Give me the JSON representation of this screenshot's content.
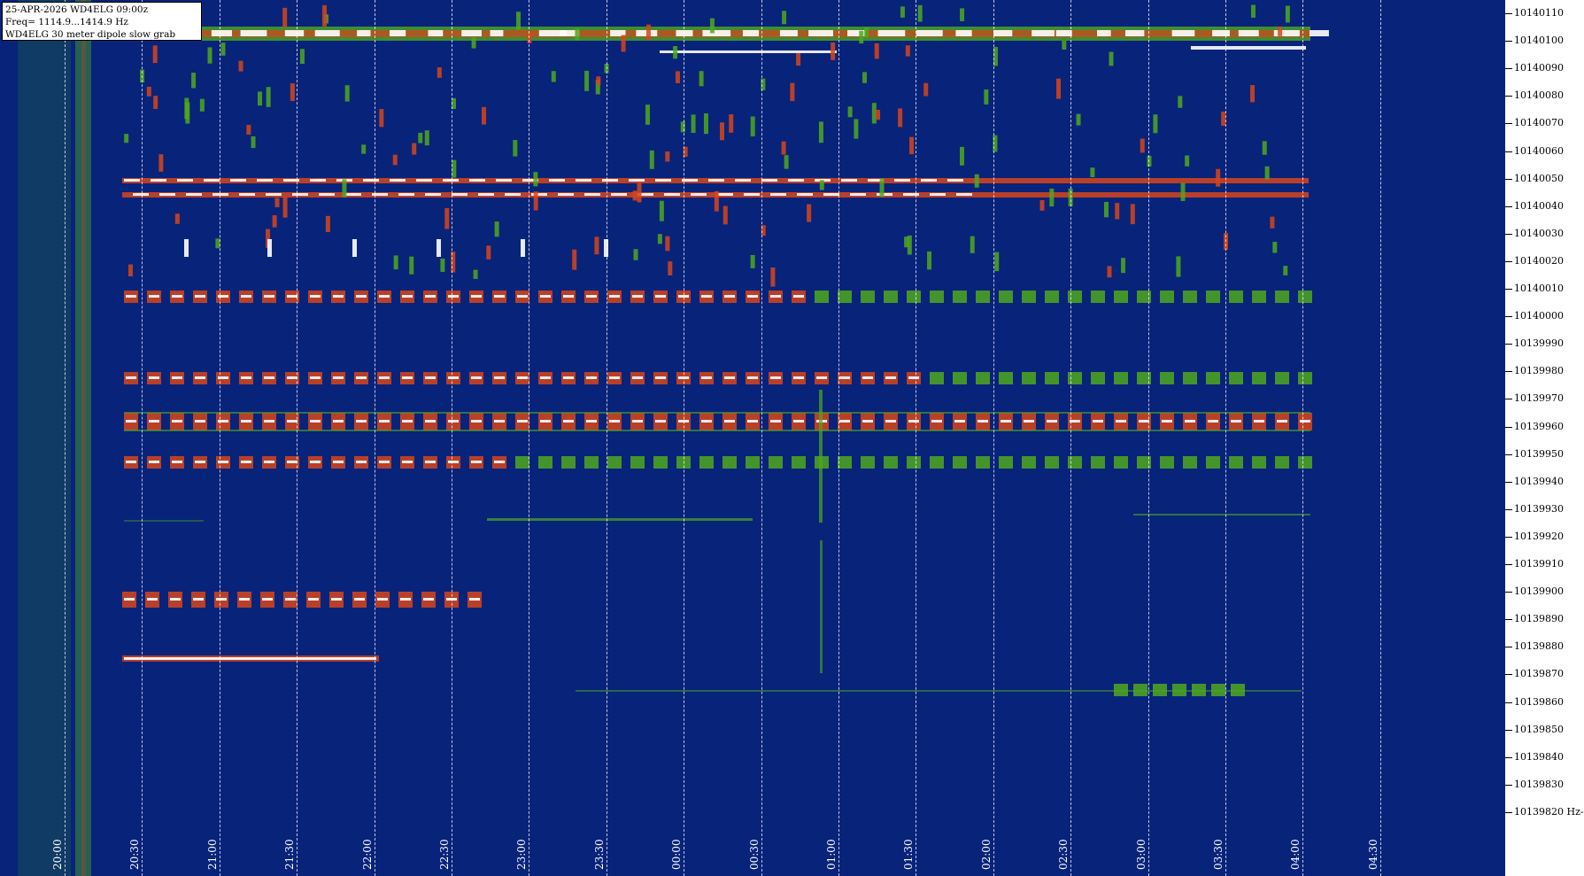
{
  "info": {
    "line1": "25-APR-2026  WD4ELG  09:00z",
    "line2": "Freq= 1114.9...1414.9 Hz",
    "line3": "WD4ELG 30 meter dipole slow grab"
  },
  "frequency_axis": {
    "unit_suffix": "Hz",
    "labels": [
      "10140110",
      "10140100",
      "10140090",
      "10140080",
      "10140070",
      "10140060",
      "10140050",
      "10140040",
      "10140030",
      "10140020",
      "10140010",
      "10140000",
      "10139990",
      "10139980",
      "10139970",
      "10139960",
      "10139950",
      "10139940",
      "10139930",
      "10139920",
      "10139910",
      "10139900",
      "10139890",
      "10139880",
      "10139870",
      "10139860",
      "10139850",
      "10139840",
      "10139830",
      "10139820"
    ]
  },
  "time_axis": {
    "labels": [
      "20:00",
      "20:30",
      "21:00",
      "21:30",
      "22:00",
      "22:30",
      "23:00",
      "23:30",
      "00:00",
      "00:30",
      "01:00",
      "01:30",
      "02:00",
      "02:30",
      "03:00",
      "03:30",
      "04:00",
      "04:30"
    ]
  },
  "colors": {
    "background": "#08237a",
    "weak": "#1e6a3c",
    "mid": "#4fa81f",
    "strong": "#d7451b",
    "peak": "#ffffff"
  }
}
